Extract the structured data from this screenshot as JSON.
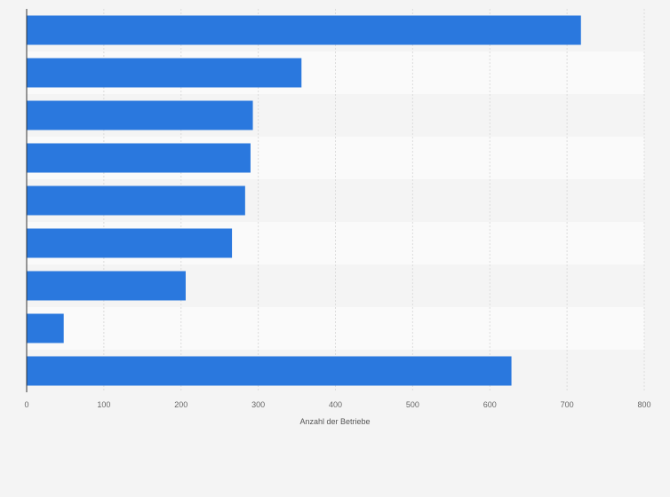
{
  "chart_data": {
    "type": "bar",
    "orientation": "horizontal",
    "categories": [
      "",
      "",
      "",
      "",
      "",
      "",
      "",
      "",
      ""
    ],
    "values": [
      718,
      356,
      293,
      290,
      283,
      266,
      206,
      48,
      628
    ],
    "xlabel": "Anzahl der Betriebe",
    "ylabel": "",
    "xlim": [
      0,
      800
    ],
    "xticks": [
      "0",
      "100",
      "200",
      "300",
      "400",
      "500",
      "600",
      "700",
      "800"
    ],
    "grid": "vertical, dashed",
    "bar_color": "#2a78de",
    "band_colors": [
      "#f4f4f4",
      "#fafafa"
    ]
  }
}
